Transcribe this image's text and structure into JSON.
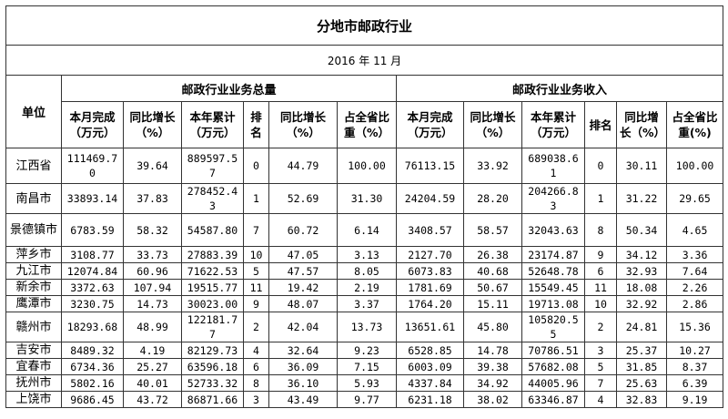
{
  "title": "分地市邮政行业",
  "date": "2016 年 11 月",
  "unit_header": "单位",
  "groups": [
    "邮政行业业务总量",
    "邮政行业业务收入"
  ],
  "sub_headers": {
    "volume": [
      "本月完成（万元）",
      "同比增长（%）",
      "本年累计（万元）",
      "排名",
      "同比增长（%）",
      "占全省比重（%）"
    ],
    "revenue": [
      "本月完成（万元）",
      "同比增长（%）",
      "本年累计（万元）",
      "排名",
      "同比增长（%）",
      "占全省比重(%)"
    ]
  },
  "rows": [
    {
      "unit": "江西省",
      "v": [
        "111469.70",
        "39.64",
        "889597.57",
        "0",
        "44.79",
        "100.00"
      ],
      "r": [
        "76113.15",
        "33.92",
        "689038.61",
        "0",
        "30.11",
        "100.00"
      ]
    },
    {
      "unit": "南昌市",
      "v": [
        "33893.14",
        "37.83",
        "278452.43",
        "1",
        "52.69",
        "31.30"
      ],
      "r": [
        "24204.59",
        "28.20",
        "204266.83",
        "1",
        "31.22",
        "29.65"
      ]
    },
    {
      "unit": "景德镇市",
      "v": [
        "6783.59",
        "58.32",
        "54587.80",
        "7",
        "60.72",
        "6.14"
      ],
      "r": [
        "3408.57",
        "58.57",
        "32043.63",
        "8",
        "50.34",
        "4.65"
      ]
    },
    {
      "unit": "萍乡市",
      "v": [
        "3108.77",
        "33.73",
        "27883.39",
        "10",
        "47.05",
        "3.13"
      ],
      "r": [
        "2127.70",
        "26.38",
        "23174.87",
        "9",
        "34.12",
        "3.36"
      ]
    },
    {
      "unit": "九江市",
      "v": [
        "12074.84",
        "60.96",
        "71622.53",
        "5",
        "47.57",
        "8.05"
      ],
      "r": [
        "6073.83",
        "40.68",
        "52648.78",
        "6",
        "32.93",
        "7.64"
      ]
    },
    {
      "unit": "新余市",
      "v": [
        "3372.63",
        "107.94",
        "19515.77",
        "11",
        "19.42",
        "2.19"
      ],
      "r": [
        "1781.69",
        "50.67",
        "15549.45",
        "11",
        "18.08",
        "2.26"
      ]
    },
    {
      "unit": "鹰潭市",
      "v": [
        "3230.75",
        "14.73",
        "30023.00",
        "9",
        "48.07",
        "3.37"
      ],
      "r": [
        "1764.20",
        "15.11",
        "19713.08",
        "10",
        "32.92",
        "2.86"
      ]
    },
    {
      "unit": "赣州市",
      "v": [
        "18293.68",
        "48.99",
        "122181.77",
        "2",
        "42.04",
        "13.73"
      ],
      "r": [
        "13651.61",
        "45.80",
        "105820.55",
        "2",
        "24.81",
        "15.36"
      ]
    },
    {
      "unit": "吉安市",
      "v": [
        "8489.32",
        "4.19",
        "82129.73",
        "4",
        "32.64",
        "9.23"
      ],
      "r": [
        "6528.85",
        "14.78",
        "70786.51",
        "3",
        "25.37",
        "10.27"
      ]
    },
    {
      "unit": "宜春市",
      "v": [
        "6734.36",
        "25.27",
        "63596.18",
        "6",
        "36.09",
        "7.15"
      ],
      "r": [
        "6003.09",
        "39.38",
        "57682.08",
        "5",
        "31.85",
        "8.37"
      ]
    },
    {
      "unit": "抚州市",
      "v": [
        "5802.16",
        "40.01",
        "52733.32",
        "8",
        "36.10",
        "5.93"
      ],
      "r": [
        "4337.84",
        "34.92",
        "44005.96",
        "7",
        "25.63",
        "6.39"
      ]
    },
    {
      "unit": "上饶市",
      "v": [
        "9686.45",
        "43.72",
        "86871.66",
        "3",
        "43.49",
        "9.77"
      ],
      "r": [
        "6231.18",
        "38.02",
        "63346.87",
        "4",
        "32.83",
        "9.19"
      ]
    }
  ]
}
